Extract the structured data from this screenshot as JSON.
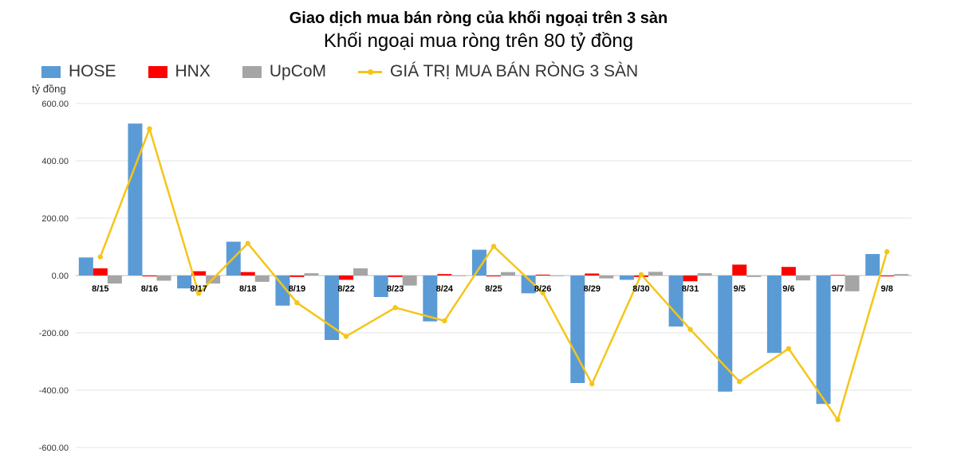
{
  "chart_data": {
    "type": "bar",
    "title": "Giao dịch mua bán ròng của khối ngoại trên 3 sàn",
    "subtitle": "Khối ngoại mua ròng trên 80 tỷ đồng",
    "ylabel": "tỷ đồng",
    "ylim": [
      -600,
      600
    ],
    "yticks": [
      "600.00",
      "400.00",
      "200.00",
      "0.00",
      "-200.00",
      "-400.00",
      "-600.00"
    ],
    "ytick_values": [
      600,
      400,
      200,
      0,
      -200,
      -400,
      -600
    ],
    "categories": [
      "8/15",
      "8/16",
      "8/17",
      "8/18",
      "8/19",
      "8/22",
      "8/23",
      "8/24",
      "8/25",
      "8/26",
      "8/29",
      "8/30",
      "8/31",
      "9/5",
      "9/6",
      "9/7",
      "9/8"
    ],
    "series": [
      {
        "name": "HOSE",
        "type": "bar",
        "color": "#5B9BD5",
        "values": [
          63,
          530,
          -45,
          118,
          -105,
          -225,
          -75,
          -160,
          90,
          -62,
          -375,
          -15,
          -178,
          -405,
          -270,
          -448,
          75
        ]
      },
      {
        "name": "HNX",
        "type": "bar",
        "color": "#FF0000",
        "values": [
          25,
          -3,
          15,
          12,
          -5,
          -15,
          -5,
          5,
          -3,
          3,
          7,
          -5,
          -20,
          38,
          30,
          2,
          -3
        ]
      },
      {
        "name": "UpCoM",
        "type": "bar",
        "color": "#A5A5A5",
        "values": [
          -28,
          -18,
          -28,
          -22,
          8,
          25,
          -35,
          -2,
          12,
          -2,
          -10,
          13,
          8,
          -5,
          -17,
          -55,
          5
        ]
      },
      {
        "name": "GIÁ TRỊ MUA BÁN RÒNG 3 SÀN",
        "type": "line",
        "color": "#F5C518",
        "values": [
          65,
          512,
          -62,
          112,
          -95,
          -212,
          -112,
          -158,
          102,
          -60,
          -378,
          3,
          -188,
          -370,
          -255,
          -503,
          83
        ]
      }
    ],
    "grid": true,
    "legend_position": "top-left"
  }
}
